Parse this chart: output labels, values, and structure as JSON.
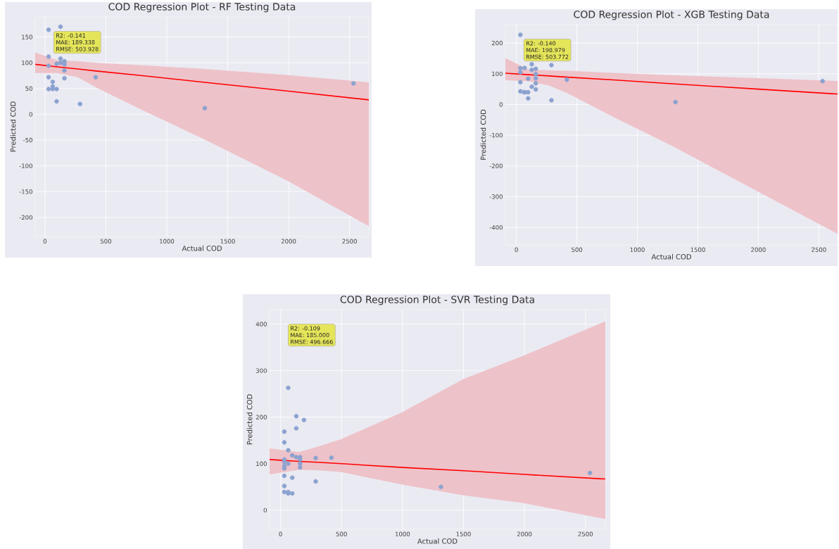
{
  "chart_data": [
    {
      "type": "scatter",
      "title": "COD Regression Plot - RF Testing Data",
      "xlabel": "Actual COD",
      "ylabel": "Predicted COD",
      "xlim": [
        -80,
        2658
      ],
      "ylim": [
        -237,
        189
      ],
      "xticks": [
        0,
        500,
        1000,
        1500,
        2000,
        2500
      ],
      "yticks": [
        -200,
        -150,
        -100,
        -50,
        0,
        50,
        100,
        150
      ],
      "grid": true,
      "annotations": [
        "R2: -0.141",
        "MAE: 189.338",
        "RMSE: 503.928"
      ],
      "series": [
        {
          "marker": "circle",
          "color": "#8ba2d0",
          "x": [
            30,
            128,
            30,
            30,
            96,
            128,
            128,
            160,
            160,
            160,
            30,
            160,
            416,
            64,
            64,
            30,
            64,
            96,
            96,
            288,
            1312,
            2532
          ],
          "values": [
            164,
            170,
            112,
            94,
            98,
            100,
            108,
            103,
            97,
            85,
            72,
            70,
            72,
            63,
            54,
            49,
            49,
            49,
            25,
            20,
            12,
            60
          ]
        },
        {
          "type": "line",
          "color": "#ff0000",
          "line_style": "solid",
          "marker": "none",
          "x": [
            -80,
            100,
            270,
            420,
            800,
            1312,
            2000,
            2658
          ],
          "values": [
            97,
            92,
            88,
            84,
            75,
            62,
            45,
            28
          ],
          "lower": [
            80,
            80,
            72,
            52,
            8,
            -49,
            -130,
            -217
          ],
          "upper": [
            120,
            105,
            103,
            100,
            95,
            88,
            76,
            62
          ]
        }
      ]
    },
    {
      "type": "scatter",
      "title": "COD Regression Plot - XGB Testing Data",
      "xlabel": "Actual COD",
      "ylabel": "Predicted COD",
      "xlim": [
        -91,
        2655
      ],
      "ylim": [
        -457,
        260
      ],
      "xticks": [
        0,
        500,
        1000,
        1500,
        2000,
        2500
      ],
      "yticks": [
        -400,
        -300,
        -200,
        -100,
        0,
        100,
        200
      ],
      "grid": true,
      "annotations": [
        "R2: -0.140",
        "MAE: 198.979",
        "RMSE: 503.772"
      ],
      "series": [
        {
          "marker": "circle",
          "color": "#8ba2d0",
          "x": [
            33,
            33,
            68,
            33,
            33,
            33,
            62,
            73,
            97,
            97,
            97,
            127,
            127,
            127,
            160,
            160,
            160,
            160,
            160,
            290,
            290,
            417,
            1315,
            2531
          ],
          "values": [
            227,
            118,
            119,
            105,
            73,
            43,
            40,
            40,
            40,
            20,
            84,
            58,
            113,
            131,
            116,
            99,
            85,
            69,
            49,
            128,
            14,
            81,
            8,
            76
          ]
        },
        {
          "type": "line",
          "color": "#ff0000",
          "line_style": "solid",
          "marker": "none",
          "x": [
            -91,
            100,
            270,
            420,
            800,
            1312,
            2000,
            2655
          ],
          "values": [
            102,
            97,
            93,
            89,
            80,
            67,
            50,
            34
          ],
          "lower": [
            79,
            76,
            62,
            37,
            -40,
            -140,
            -284,
            -421
          ],
          "upper": [
            151,
            114,
            111,
            110,
            103,
            95,
            86,
            77
          ]
        }
      ]
    },
    {
      "type": "scatter",
      "title": "COD Regression Plot - SVR Testing Data",
      "xlabel": "Actual COD",
      "ylabel": "Predicted COD",
      "xlim": [
        -90,
        2663
      ],
      "ylim": [
        -41,
        431
      ],
      "xticks": [
        0,
        500,
        1000,
        1500,
        2000,
        2500
      ],
      "yticks": [
        0,
        100,
        200,
        300,
        400
      ],
      "grid": true,
      "annotations": [
        "R2: -0.109",
        "MAE: 185.000",
        "RMSE: 496.666"
      ],
      "series": [
        {
          "marker": "circle",
          "color": "#8ba2d0",
          "x": [
            63,
            129,
            192,
            129,
            31,
            31,
            63,
            96,
            129,
            160,
            160,
            160,
            160,
            288,
            417,
            31,
            31,
            31,
            31,
            63,
            31,
            96,
            288,
            31,
            31,
            63,
            63,
            96,
            1315,
            2537
          ],
          "values": [
            263,
            202,
            194,
            176,
            169,
            146,
            129,
            118,
            114,
            114,
            109,
            100,
            92,
            112,
            113,
            109,
            104,
            95,
            90,
            100,
            74,
            70,
            62,
            52,
            39,
            39,
            36,
            36,
            50,
            80
          ]
        },
        {
          "type": "line",
          "color": "#ff0000",
          "line_style": "solid",
          "marker": "none",
          "x": [
            -90,
            150,
            300,
            500,
            1000,
            1500,
            2000,
            2663
          ],
          "values": [
            109,
            105,
            103,
            100,
            92,
            85,
            77,
            67
          ],
          "lower": [
            77,
            87,
            86,
            82,
            55,
            32,
            15,
            -19
          ],
          "upper": [
            133,
            125,
            136,
            153,
            211,
            282,
            333,
            406
          ]
        }
      ]
    }
  ]
}
